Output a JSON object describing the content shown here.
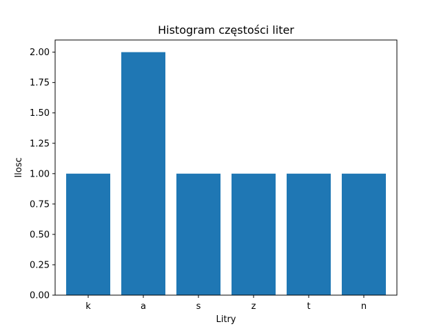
{
  "chart_data": {
    "type": "bar",
    "title": "Histogram częstości liter",
    "xlabel": "Litry",
    "ylabel": "Ilosc",
    "categories": [
      "k",
      "a",
      "s",
      "z",
      "t",
      "n"
    ],
    "values": [
      1,
      2,
      1,
      1,
      1,
      1
    ],
    "ylim": [
      0,
      2.1
    ],
    "yticks": [
      "0.00",
      "0.25",
      "0.50",
      "0.75",
      "1.00",
      "1.25",
      "1.50",
      "1.75",
      "2.00"
    ],
    "grid": false,
    "legend": "none",
    "bar_color": "#1f77b4"
  }
}
